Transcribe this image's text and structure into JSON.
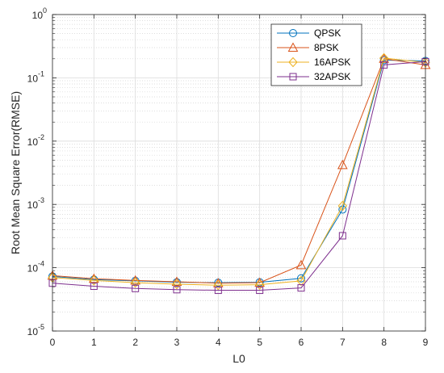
{
  "chart_data": {
    "type": "line",
    "xlabel": "L0",
    "ylabel": "Root Mean Square Error(RMSE)",
    "xlim": [
      0,
      9
    ],
    "ylim": [
      1e-05,
      1
    ],
    "yscale": "log",
    "grid": true,
    "legend_position": "top-right",
    "x": [
      0,
      1,
      2,
      3,
      4,
      5,
      6,
      7,
      8,
      9
    ],
    "x_ticks": [
      "0",
      "1",
      "2",
      "3",
      "4",
      "5",
      "6",
      "7",
      "8",
      "9"
    ],
    "y_ticks": [
      {
        "base": "10",
        "exp": "-5",
        "value": 1e-05
      },
      {
        "base": "10",
        "exp": "-4",
        "value": 0.0001
      },
      {
        "base": "10",
        "exp": "-3",
        "value": 0.001
      },
      {
        "base": "10",
        "exp": "-2",
        "value": 0.01
      },
      {
        "base": "10",
        "exp": "-1",
        "value": 0.1
      },
      {
        "base": "10",
        "exp": "0",
        "value": 1
      }
    ],
    "series": [
      {
        "name": "QPSK",
        "color": "#0072BD",
        "marker": "circle",
        "values": [
          7.3e-05,
          6.5e-05,
          6.2e-05,
          5.9e-05,
          5.8e-05,
          5.9e-05,
          6.8e-05,
          0.00083,
          0.19,
          0.185
        ]
      },
      {
        "name": "8PSK",
        "color": "#D95319",
        "marker": "triangle",
        "values": [
          7.5e-05,
          6.7e-05,
          6.3e-05,
          6e-05,
          5.7e-05,
          5.8e-05,
          0.00011,
          0.0042,
          0.2,
          0.16
        ]
      },
      {
        "name": "16APSK",
        "color": "#EDB120",
        "marker": "diamond",
        "values": [
          7e-05,
          6.3e-05,
          5.8e-05,
          5.5e-05,
          5.3e-05,
          5.4e-05,
          6.2e-05,
          0.00095,
          0.205,
          0.175
        ]
      },
      {
        "name": "32APSK",
        "color": "#7E2F8E",
        "marker": "square",
        "values": [
          5.7e-05,
          5.1e-05,
          4.7e-05,
          4.5e-05,
          4.4e-05,
          4.4e-05,
          4.8e-05,
          0.00032,
          0.16,
          0.18
        ]
      }
    ]
  }
}
